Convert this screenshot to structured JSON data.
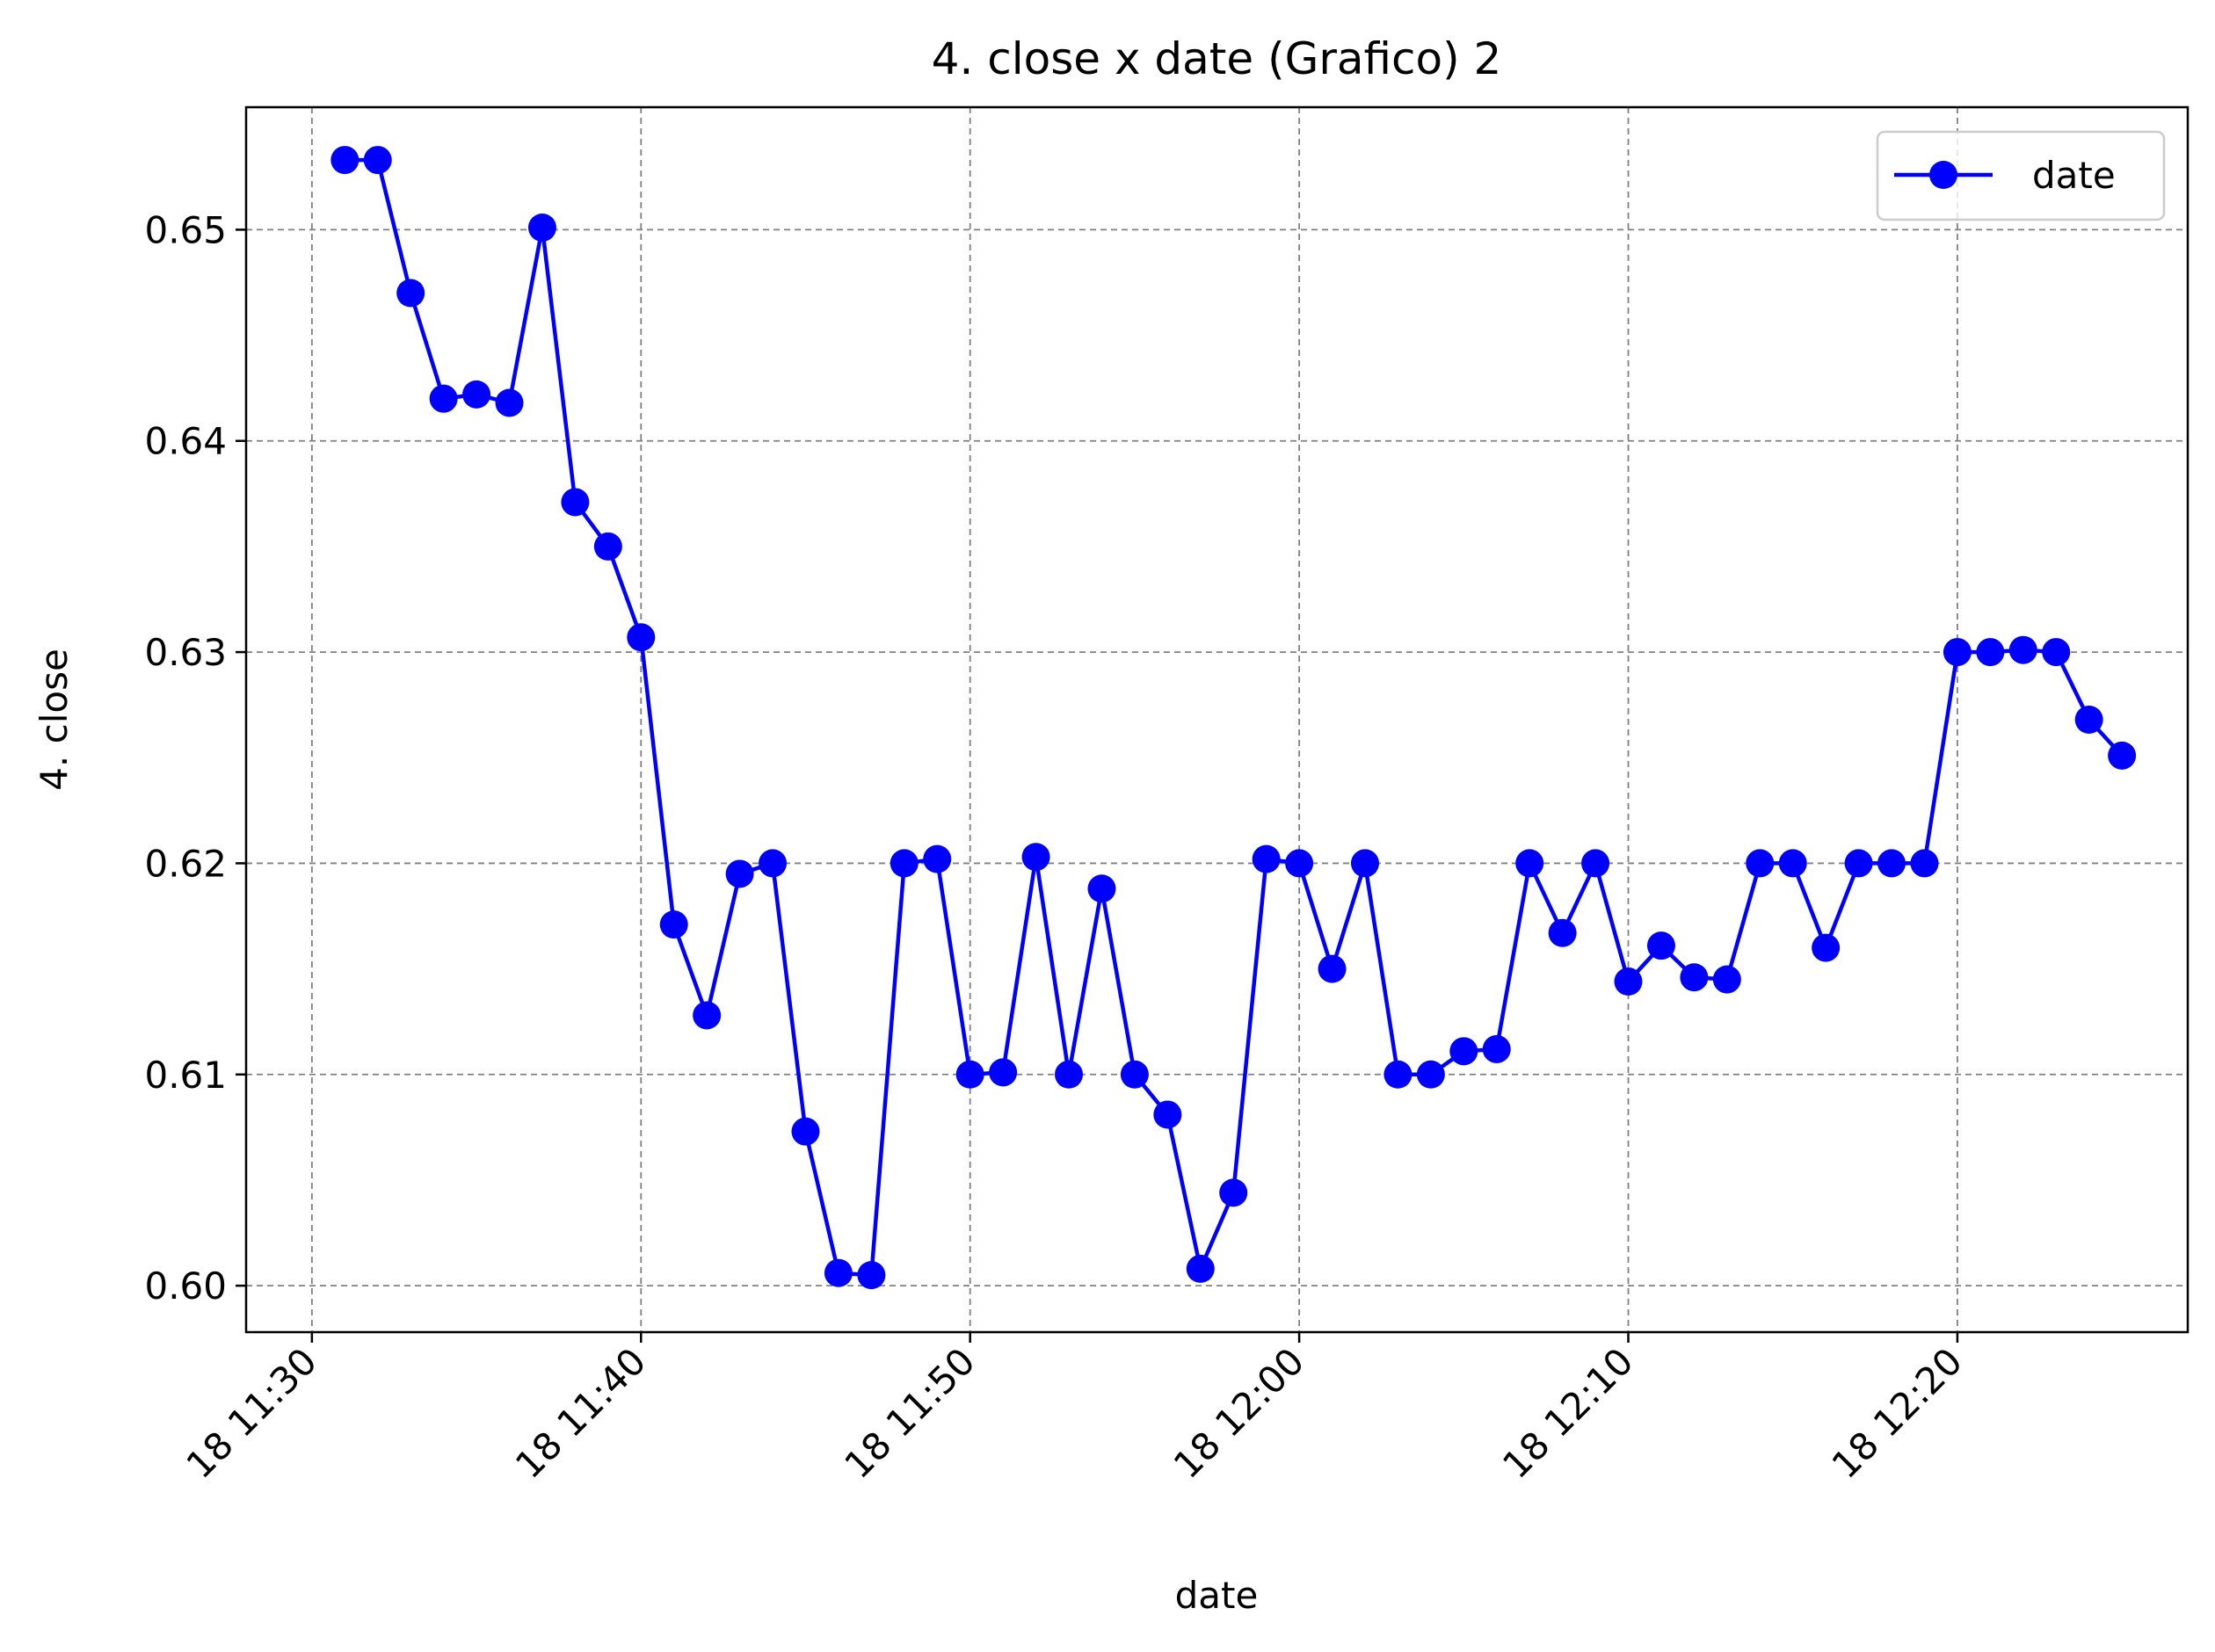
{
  "chart_data": {
    "type": "line",
    "title": "4. close x date (Grafico) 2",
    "xlabel": "date",
    "ylabel": "4. close",
    "x_ticks": [
      "18 11:30",
      "18 11:40",
      "18 11:50",
      "18 12:00",
      "18 12:10",
      "18 12:20"
    ],
    "y_ticks": [
      "0.60",
      "0.61",
      "0.62",
      "0.63",
      "0.64",
      "0.65"
    ],
    "ylim": [
      0.5978,
      0.6558
    ],
    "xlim": [
      "18 11:28",
      "18 12:27"
    ],
    "grid": true,
    "legend_position": "upper right",
    "series": [
      {
        "name": "date",
        "color": "#0000ff",
        "marker": "circle",
        "x": [
          "18 11:31",
          "18 11:32",
          "18 11:33",
          "18 11:34",
          "18 11:35",
          "18 11:36",
          "18 11:37",
          "18 11:38",
          "18 11:39",
          "18 11:40",
          "18 11:41",
          "18 11:42",
          "18 11:43",
          "18 11:44",
          "18 11:45",
          "18 11:46",
          "18 11:47",
          "18 11:48",
          "18 11:49",
          "18 11:50",
          "18 11:51",
          "18 11:52",
          "18 11:53",
          "18 11:54",
          "18 11:55",
          "18 11:56",
          "18 11:57",
          "18 11:58",
          "18 11:59",
          "18 12:00",
          "18 12:01",
          "18 12:02",
          "18 12:03",
          "18 12:04",
          "18 12:05",
          "18 12:06",
          "18 12:07",
          "18 12:08",
          "18 12:09",
          "18 12:10",
          "18 12:11",
          "18 12:12",
          "18 12:13",
          "18 12:14",
          "18 12:15",
          "18 12:16",
          "18 12:17",
          "18 12:18",
          "18 12:19",
          "18 12:20",
          "18 12:21",
          "18 12:22",
          "18 12:23",
          "18 12:24",
          "18 12:25"
        ],
        "values": [
          0.6533,
          0.6533,
          0.647,
          0.642,
          0.6422,
          0.6418,
          0.6501,
          0.6371,
          0.635,
          0.6307,
          0.6171,
          0.6128,
          0.6195,
          0.62,
          0.6073,
          0.6006,
          0.6005,
          0.62,
          0.6202,
          0.61,
          0.6101,
          0.6203,
          0.61,
          0.6188,
          0.61,
          0.6081,
          0.6008,
          0.6044,
          0.6202,
          0.62,
          0.615,
          0.62,
          0.61,
          0.61,
          0.6111,
          0.6112,
          0.62,
          0.6167,
          0.62,
          0.6144,
          0.6161,
          0.6146,
          0.6145,
          0.62,
          0.62,
          0.616,
          0.62,
          0.62,
          0.62,
          0.63,
          0.63,
          0.6301,
          0.63,
          0.6268,
          0.6251
        ]
      }
    ]
  }
}
